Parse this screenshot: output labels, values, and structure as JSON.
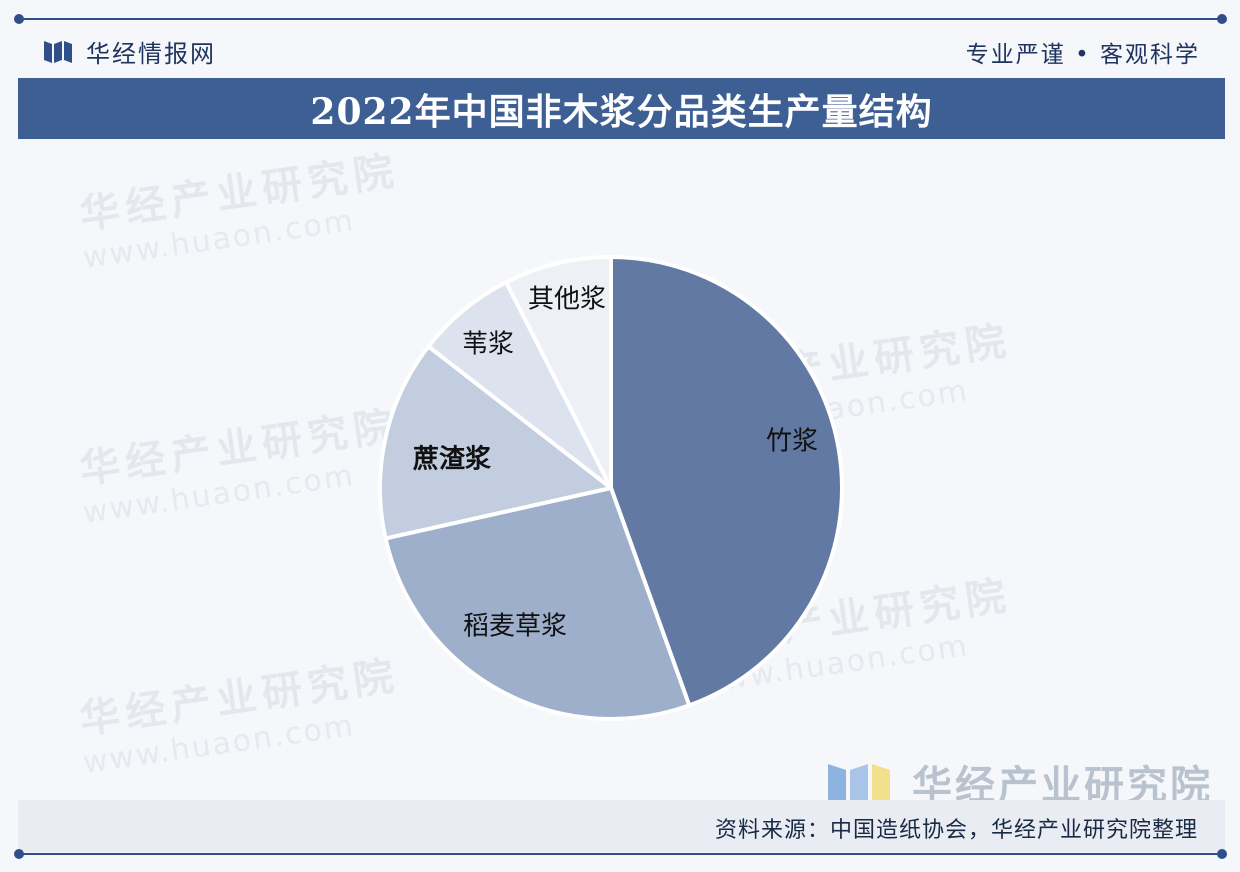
{
  "header": {
    "brand_name": "华经情报网",
    "tagline": "专业严谨 • 客观科学"
  },
  "title": "2022年中国非木浆分品类生产量结构",
  "watermark": {
    "text": "华经产业研究院",
    "url": "www.huaon.com"
  },
  "footer": {
    "brand": "华经产业研究院",
    "source": "资料来源：中国造纸协会，华经产业研究院整理"
  },
  "colors": {
    "accent": "#3e5f94",
    "slice_bamboo": "#6179a3",
    "slice_straw": "#9eafcb",
    "slice_bagasse": "#c2cddf",
    "slice_reed": "#dde3ee",
    "slice_other": "#edf0f5"
  },
  "chart_data": {
    "type": "pie",
    "title": "2022年中国非木浆分品类生产量结构",
    "start": "12 o'clock, clockwise",
    "slices": [
      {
        "label": "竹浆",
        "value": 44.5,
        "color": "#6179a3"
      },
      {
        "label": "稻麦草浆",
        "value": 27.0,
        "color": "#9eafcb"
      },
      {
        "label": "蔗渣浆",
        "value": 14.0,
        "color": "#c2cddf"
      },
      {
        "label": "苇浆",
        "value": 7.0,
        "color": "#dde3ee"
      },
      {
        "label": "其他浆",
        "value": 7.5,
        "color": "#edf0f5"
      }
    ]
  }
}
